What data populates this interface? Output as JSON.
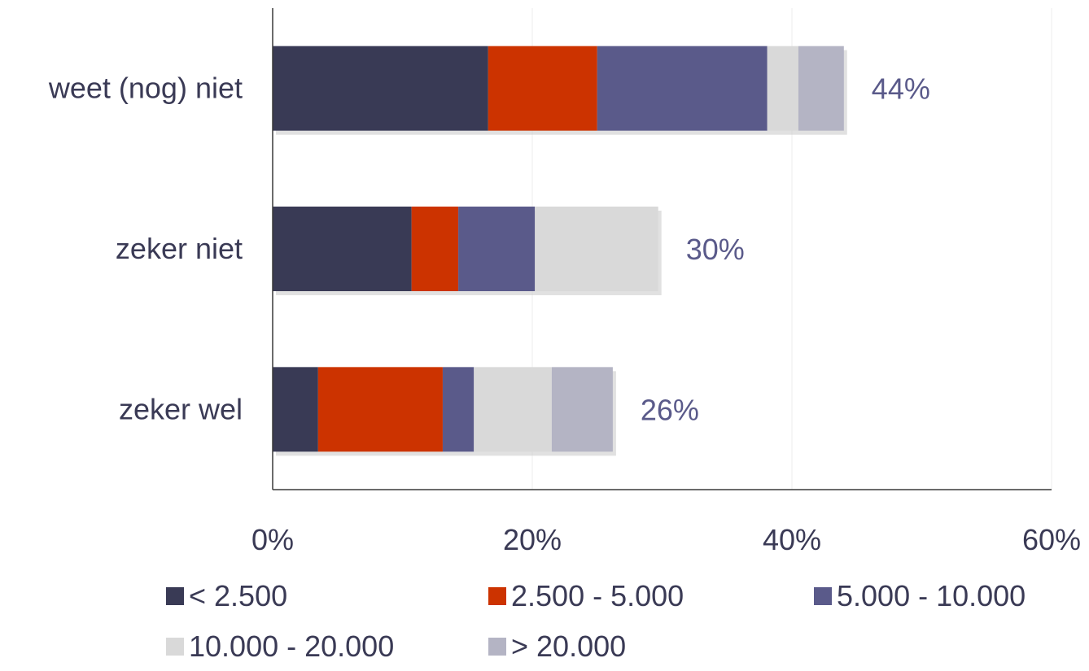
{
  "chart_data": {
    "type": "bar",
    "orientation": "horizontal",
    "stacked": true,
    "categories": [
      "weet (nog) niet",
      "zeker niet",
      "zeker wel"
    ],
    "series": [
      {
        "name": "< 2.500",
        "color": "#393a55",
        "values": [
          16.6,
          10.7,
          3.5
        ]
      },
      {
        "name": "2.500 - 5.000",
        "color": "#cc3300",
        "values": [
          8.4,
          3.6,
          9.6
        ]
      },
      {
        "name": "5.000 - 10.000",
        "color": "#5a5a8a",
        "values": [
          13.1,
          5.9,
          2.4
        ]
      },
      {
        "name": "10.000 - 20.000",
        "color": "#d9d9d9",
        "values": [
          2.4,
          9.5,
          6.0
        ]
      },
      {
        "name": "> 20.000",
        "color": "#b4b4c4",
        "values": [
          3.5,
          0,
          4.7
        ]
      }
    ],
    "totals": [
      "44%",
      "30%",
      "26%"
    ],
    "xlim": [
      0,
      60
    ],
    "xticks": [
      "0%",
      "20%",
      "40%",
      "60%"
    ],
    "grid": true,
    "legend_position": "bottom"
  }
}
